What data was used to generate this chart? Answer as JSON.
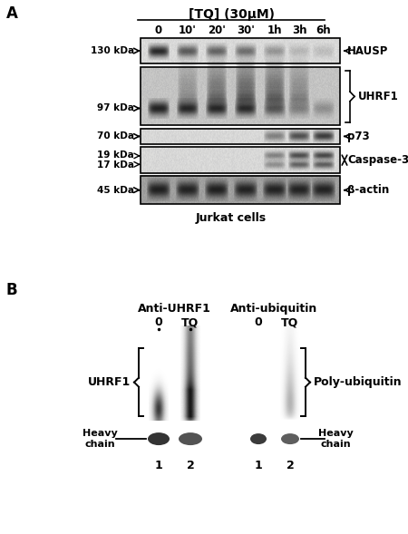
{
  "panel_a": {
    "title": "[TQ] (30μM)",
    "time_labels": [
      "0",
      "10'",
      "20'",
      "30'",
      "1h",
      "3h",
      "6h"
    ],
    "protein_labels": [
      "HAUSP",
      "UHRF1",
      "p73",
      "Caspase-3",
      "β-actin"
    ],
    "cell_line": "Jurkat cells",
    "kda_labels": [
      "130 kDa",
      "97 kDa",
      "70 kDa",
      "19 kDa",
      "17 kDa",
      "45 kDa"
    ]
  },
  "panel_b": {
    "left_title": "Anti-UHRF1",
    "right_title": "Anti-ubiquitin",
    "left_label": "UHRF1",
    "right_label": "Poly-ubiquitin",
    "heavy_chain": "Heavy\nchain"
  },
  "colors": {
    "bg": "white",
    "blot_bg_hausp": "#d8d8d4",
    "blot_bg_uhrf1": "#c8c8c4",
    "blot_bg_p73": "#d4d4d0",
    "blot_bg_casp": "#d4d4d0",
    "blot_bg_actin": "#a8a8a4",
    "band_dark": "#151515",
    "band_medium": "#3a3a3a",
    "band_light": "#686868",
    "band_vlight": "#999999"
  }
}
